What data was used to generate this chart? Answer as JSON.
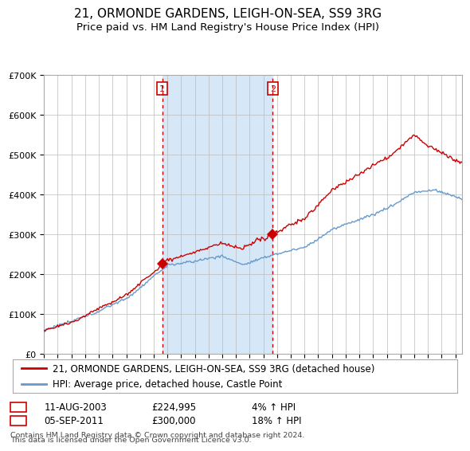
{
  "title": "21, ORMONDE GARDENS, LEIGH-ON-SEA, SS9 3RG",
  "subtitle": "Price paid vs. HM Land Registry's House Price Index (HPI)",
  "ylim": [
    0,
    700000
  ],
  "yticks": [
    0,
    100000,
    200000,
    300000,
    400000,
    500000,
    600000,
    700000
  ],
  "ytick_labels": [
    "£0",
    "£100K",
    "£200K",
    "£300K",
    "£400K",
    "£500K",
    "£600K",
    "£700K"
  ],
  "xlim_start": 1995,
  "xlim_end": 2025.5,
  "background_color": "#ffffff",
  "plot_bg_color": "#dce8f5",
  "grid_color": "#bbbbbb",
  "sale1_date": 2003.62,
  "sale1_label": "1",
  "sale1_price": 224995,
  "sale1_text": "11-AUG-2003",
  "sale1_pct": "4% ↑ HPI",
  "sale2_date": 2011.68,
  "sale2_label": "2",
  "sale2_price": 300000,
  "sale2_text": "05-SEP-2011",
  "sale2_pct": "18% ↑ HPI",
  "line_color_property": "#cc0000",
  "line_color_hpi": "#6699cc",
  "legend_label_property": "21, ORMONDE GARDENS, LEIGH-ON-SEA, SS9 3RG (detached house)",
  "legend_label_hpi": "HPI: Average price, detached house, Castle Point",
  "footer_line1": "Contains HM Land Registry data © Crown copyright and database right 2024.",
  "footer_line2": "This data is licensed under the Open Government Licence v3.0.",
  "title_fontsize": 11,
  "subtitle_fontsize": 9.5,
  "tick_fontsize": 8,
  "legend_fontsize": 8.5
}
